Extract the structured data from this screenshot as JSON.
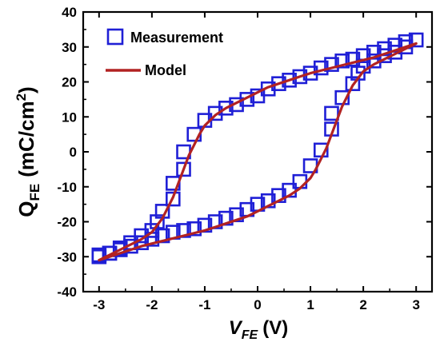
{
  "chart_data": {
    "type": "line",
    "xlabel": {
      "main": "V",
      "sub": "FE",
      "unit": "(V)"
    },
    "ylabel": {
      "main": "Q",
      "sub": "FE",
      "unit": "(mC/cm",
      "sup": "2",
      "close": ")"
    },
    "xlim": [
      -3.3,
      3.3
    ],
    "ylim": [
      -40,
      40
    ],
    "xticks": [
      -3,
      -2,
      -1,
      0,
      1,
      2,
      3
    ],
    "yticks": [
      -40,
      -30,
      -20,
      -10,
      0,
      10,
      20,
      30,
      40
    ],
    "grid": false,
    "legend_position": "top-left",
    "series": [
      {
        "name": "Measurement",
        "kind": "scatter",
        "marker": "square-open",
        "color": "#1f1fd6",
        "points": [
          [
            -3.0,
            -29.5
          ],
          [
            -2.8,
            -29.0
          ],
          [
            -2.6,
            -27.5
          ],
          [
            -2.4,
            -26.0
          ],
          [
            -2.2,
            -24.0
          ],
          [
            -2.0,
            -22.5
          ],
          [
            -1.9,
            -20.0
          ],
          [
            -1.8,
            -17.0
          ],
          [
            -1.6,
            -13.5
          ],
          [
            -1.6,
            -9.0
          ],
          [
            -1.4,
            -5.0
          ],
          [
            -1.4,
            0.0
          ],
          [
            -1.2,
            5.0
          ],
          [
            -1.0,
            9.0
          ],
          [
            -0.8,
            11.0
          ],
          [
            -0.6,
            12.5
          ],
          [
            -0.4,
            13.5
          ],
          [
            -0.2,
            15.0
          ],
          [
            0.0,
            16.0
          ],
          [
            0.2,
            18.0
          ],
          [
            0.4,
            19.5
          ],
          [
            0.6,
            20.5
          ],
          [
            0.8,
            21.5
          ],
          [
            1.0,
            22.5
          ],
          [
            1.2,
            24.0
          ],
          [
            1.4,
            25.0
          ],
          [
            1.6,
            26.0
          ],
          [
            1.8,
            26.5
          ],
          [
            2.0,
            27.5
          ],
          [
            2.2,
            28.5
          ],
          [
            2.4,
            29.5
          ],
          [
            2.6,
            30.5
          ],
          [
            2.8,
            31.5
          ],
          [
            3.0,
            32.0
          ],
          [
            2.8,
            30.0
          ],
          [
            2.6,
            28.5
          ],
          [
            2.4,
            27.5
          ],
          [
            2.2,
            26.0
          ],
          [
            2.0,
            24.5
          ],
          [
            1.9,
            22.5
          ],
          [
            1.8,
            19.5
          ],
          [
            1.6,
            15.5
          ],
          [
            1.4,
            11.0
          ],
          [
            1.4,
            6.5
          ],
          [
            1.2,
            0.5
          ],
          [
            1.0,
            -4.0
          ],
          [
            0.8,
            -8.5
          ],
          [
            0.6,
            -11.0
          ],
          [
            0.4,
            -12.5
          ],
          [
            0.2,
            -14.0
          ],
          [
            0.0,
            -15.0
          ],
          [
            -0.2,
            -16.5
          ],
          [
            -0.4,
            -18.0
          ],
          [
            -0.6,
            -19.0
          ],
          [
            -0.8,
            -20.0
          ],
          [
            -1.0,
            -21.0
          ],
          [
            -1.2,
            -22.0
          ],
          [
            -1.4,
            -22.5
          ],
          [
            -1.6,
            -23.0
          ],
          [
            -1.8,
            -24.0
          ],
          [
            -2.0,
            -25.0
          ],
          [
            -2.2,
            -26.0
          ],
          [
            -2.4,
            -27.0
          ],
          [
            -2.6,
            -28.0
          ],
          [
            -2.8,
            -29.0
          ],
          [
            -3.0,
            -30.0
          ]
        ]
      },
      {
        "name": "Model",
        "kind": "line",
        "color": "#b22222",
        "points": [
          [
            -3.0,
            -31.0
          ],
          [
            -2.8,
            -29.5
          ],
          [
            -2.6,
            -28.0
          ],
          [
            -2.4,
            -26.5
          ],
          [
            -2.2,
            -25.0
          ],
          [
            -2.0,
            -23.0
          ],
          [
            -1.8,
            -19.0
          ],
          [
            -1.6,
            -13.0
          ],
          [
            -1.5,
            -9.0
          ],
          [
            -1.4,
            -5.0
          ],
          [
            -1.3,
            -1.0
          ],
          [
            -1.2,
            2.0
          ],
          [
            -1.1,
            5.0
          ],
          [
            -1.0,
            7.5
          ],
          [
            -0.8,
            10.5
          ],
          [
            -0.6,
            12.5
          ],
          [
            -0.4,
            14.0
          ],
          [
            -0.2,
            15.5
          ],
          [
            0.0,
            17.0
          ],
          [
            0.2,
            18.5
          ],
          [
            0.4,
            19.5
          ],
          [
            0.6,
            20.5
          ],
          [
            0.8,
            21.5
          ],
          [
            1.0,
            22.5
          ],
          [
            1.4,
            24.0
          ],
          [
            1.8,
            25.5
          ],
          [
            2.2,
            27.0
          ],
          [
            2.6,
            29.0
          ],
          [
            3.0,
            31.0
          ],
          [
            2.8,
            29.5
          ],
          [
            2.6,
            28.0
          ],
          [
            2.4,
            26.5
          ],
          [
            2.2,
            25.0
          ],
          [
            2.0,
            23.0
          ],
          [
            1.8,
            19.0
          ],
          [
            1.6,
            13.0
          ],
          [
            1.5,
            9.0
          ],
          [
            1.4,
            5.0
          ],
          [
            1.3,
            1.0
          ],
          [
            1.2,
            -2.0
          ],
          [
            1.1,
            -5.0
          ],
          [
            1.0,
            -7.5
          ],
          [
            0.8,
            -10.5
          ],
          [
            0.6,
            -12.5
          ],
          [
            0.4,
            -14.0
          ],
          [
            0.2,
            -15.5
          ],
          [
            0.0,
            -17.0
          ],
          [
            -0.2,
            -18.5
          ],
          [
            -0.4,
            -19.5
          ],
          [
            -0.6,
            -20.5
          ],
          [
            -0.8,
            -21.5
          ],
          [
            -1.0,
            -22.5
          ],
          [
            -1.4,
            -24.0
          ],
          [
            -1.8,
            -25.5
          ],
          [
            -2.2,
            -27.0
          ],
          [
            -2.6,
            -29.0
          ],
          [
            -3.0,
            -31.0
          ]
        ]
      }
    ]
  }
}
